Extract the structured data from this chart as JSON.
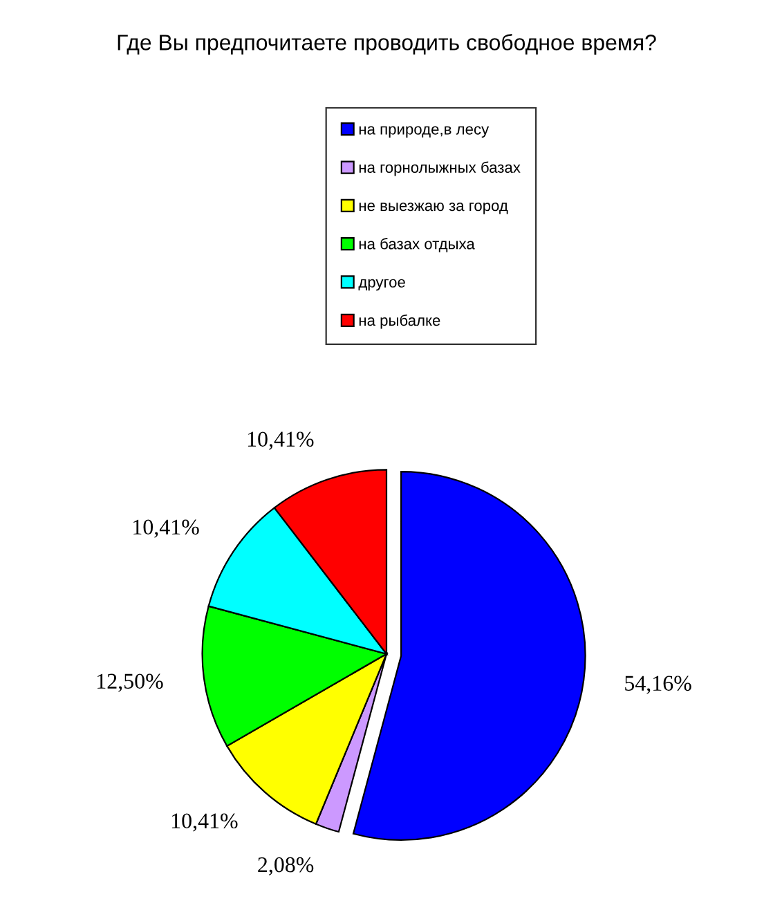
{
  "chart_data": {
    "type": "pie",
    "title": "Где Вы предпочитаете проводить свободное время?",
    "categories": [
      "на природе,в лесу",
      "на горнолыжных базах",
      "не выезжаю за город",
      "на базах отдыха",
      "другое",
      "на рыбалке"
    ],
    "values": [
      54.16,
      2.08,
      10.41,
      12.5,
      10.41,
      10.41
    ],
    "value_labels": [
      "54,16%",
      "2,08%",
      "10,41%",
      "12,50%",
      "10,41%",
      "10,41%"
    ],
    "colors": [
      "#0000ff",
      "#cc99ff",
      "#ffff00",
      "#00ff00",
      "#00ffff",
      "#ff0000"
    ],
    "legend": "top"
  }
}
